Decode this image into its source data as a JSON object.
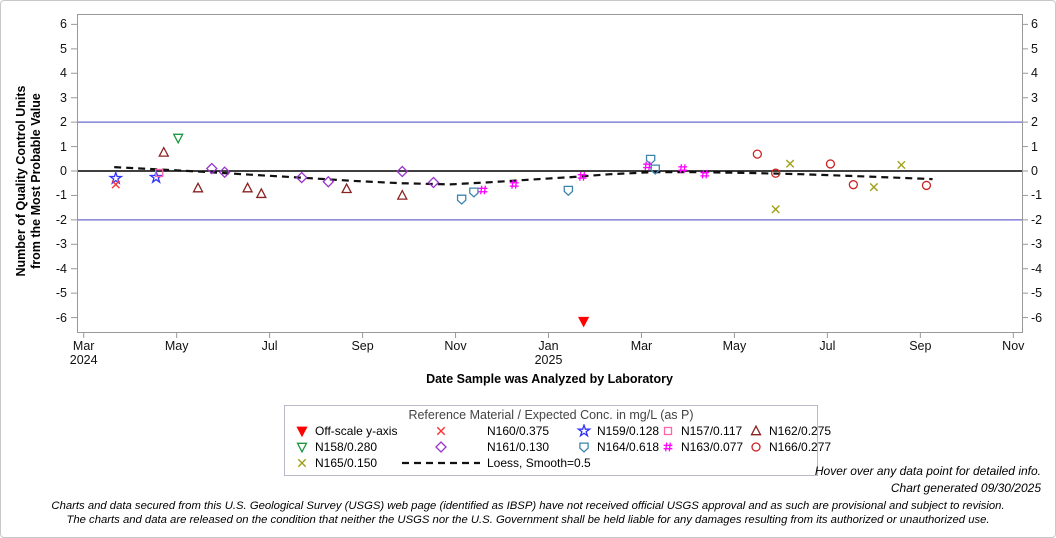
{
  "figure": {
    "y_axis_title_line1": "Number of Quality Control Units",
    "y_axis_title_line2": "from the Most Probable Value",
    "x_axis_title": "Date Sample was Analyzed by Laboratory"
  },
  "chart_data": {
    "type": "scatter",
    "title": "",
    "xlabel": "Date Sample was Analyzed by Laboratory",
    "ylabel": "Number of Quality Control Units from the Most Probable Value",
    "y_axis": {
      "min": -6,
      "max": 6,
      "tick_step": 1,
      "ticks": [
        6,
        5,
        4,
        3,
        2,
        1,
        0,
        -1,
        -2,
        -3,
        -4,
        -5,
        -6
      ]
    },
    "x_axis": {
      "ticks": [
        {
          "label": "Mar",
          "sublabel": "2024",
          "month_index": 0
        },
        {
          "label": "May",
          "sublabel": "",
          "month_index": 2
        },
        {
          "label": "Jul",
          "sublabel": "",
          "month_index": 4
        },
        {
          "label": "Sep",
          "sublabel": "",
          "month_index": 6
        },
        {
          "label": "Nov",
          "sublabel": "",
          "month_index": 8
        },
        {
          "label": "Jan",
          "sublabel": "2025",
          "month_index": 10
        },
        {
          "label": "Mar",
          "sublabel": "",
          "month_index": 12
        },
        {
          "label": "May",
          "sublabel": "",
          "month_index": 14
        },
        {
          "label": "Jul",
          "sublabel": "",
          "month_index": 16
        },
        {
          "label": "Sep",
          "sublabel": "",
          "month_index": 18
        },
        {
          "label": "Nov",
          "sublabel": "",
          "month_index": 20
        }
      ]
    },
    "reference_lines": [
      {
        "value": 2,
        "color": "#6a6ace"
      },
      {
        "value": 0,
        "color": "#000000"
      },
      {
        "value": -2,
        "color": "#6a6ace"
      }
    ],
    "series": [
      {
        "name": "N159",
        "label": "N159/0.128",
        "marker": "star",
        "color": "#3232ff",
        "points": [
          {
            "date": "2024-03-22",
            "value": -0.3
          },
          {
            "date": "2024-04-18",
            "value": -0.26
          }
        ]
      },
      {
        "name": "N160",
        "label": "N160/0.375",
        "marker": "x",
        "color": "#ff3333",
        "points": [
          {
            "date": "2024-03-22",
            "value": -0.55
          }
        ]
      },
      {
        "name": "N157",
        "label": "N157/0.117",
        "marker": "square",
        "color": "#ff66aa",
        "points": [
          {
            "date": "2024-04-20",
            "value": -0.08
          }
        ]
      },
      {
        "name": "N158",
        "label": "N158/0.280",
        "marker": "triangle-down",
        "color": "#1d9740",
        "points": [
          {
            "date": "2024-05-02",
            "value": 1.35
          }
        ]
      },
      {
        "name": "N162",
        "label": "N162/0.275",
        "marker": "triangle-up",
        "color": "#8b2222",
        "points": [
          {
            "date": "2024-04-23",
            "value": 0.76
          },
          {
            "date": "2024-05-15",
            "value": -0.7
          },
          {
            "date": "2024-06-17",
            "value": -0.7
          },
          {
            "date": "2024-06-26",
            "value": -0.93
          },
          {
            "date": "2024-08-21",
            "value": -0.73
          },
          {
            "date": "2024-09-27",
            "value": -1.0
          }
        ]
      },
      {
        "name": "N161",
        "label": "N161/0.130",
        "marker": "diamond",
        "color": "#9933cc",
        "points": [
          {
            "date": "2024-05-24",
            "value": 0.1
          },
          {
            "date": "2024-06-02",
            "value": -0.05
          },
          {
            "date": "2024-07-22",
            "value": -0.27
          },
          {
            "date": "2024-08-09",
            "value": -0.44
          },
          {
            "date": "2024-09-27",
            "value": -0.02
          },
          {
            "date": "2024-10-17",
            "value": -0.47
          }
        ]
      },
      {
        "name": "N164",
        "label": "N164/0.618",
        "marker": "shield",
        "color": "#3d85ad",
        "points": [
          {
            "date": "2024-11-05",
            "value": -1.15
          },
          {
            "date": "2024-11-13",
            "value": -0.86
          },
          {
            "date": "2025-01-14",
            "value": -0.79
          },
          {
            "date": "2025-03-07",
            "value": 0.48
          },
          {
            "date": "2025-03-10",
            "value": 0.08
          }
        ]
      },
      {
        "name": "N163",
        "label": "N163/0.077",
        "marker": "hash",
        "color": "#ff00ff",
        "points": [
          {
            "date": "2024-11-19",
            "value": -0.78
          },
          {
            "date": "2024-12-09",
            "value": -0.55
          },
          {
            "date": "2025-01-23",
            "value": -0.22
          },
          {
            "date": "2025-03-05",
            "value": 0.21
          },
          {
            "date": "2025-03-28",
            "value": 0.1
          },
          {
            "date": "2025-04-12",
            "value": -0.13
          }
        ]
      },
      {
        "name": "N166",
        "label": "N166/0.277",
        "marker": "circle",
        "color": "#cc2222",
        "points": [
          {
            "date": "2025-05-16",
            "value": 0.69
          },
          {
            "date": "2025-05-28",
            "value": -0.09
          },
          {
            "date": "2025-07-03",
            "value": 0.29
          },
          {
            "date": "2025-07-18",
            "value": -0.56
          },
          {
            "date": "2025-09-05",
            "value": -0.59
          }
        ]
      },
      {
        "name": "N165",
        "label": "N165/0.150",
        "marker": "x",
        "color": "#a0a018",
        "points": [
          {
            "date": "2025-05-28",
            "value": -1.57
          },
          {
            "date": "2025-06-07",
            "value": 0.3
          },
          {
            "date": "2025-08-01",
            "value": -0.66
          },
          {
            "date": "2025-08-19",
            "value": 0.25
          }
        ]
      }
    ],
    "off_scale_points": [
      {
        "date": "2025-01-24",
        "direction": "low",
        "plotted_value": -6.15,
        "marker": "triangle-down-filled",
        "color": "#ff0000"
      }
    ],
    "loess": {
      "label": "Loess, Smooth=0.5",
      "color": "#111111",
      "points": [
        {
          "date": "2024-03-21",
          "value": 0.16
        },
        {
          "date": "2024-04-14",
          "value": 0.08
        },
        {
          "date": "2024-05-17",
          "value": -0.03
        },
        {
          "date": "2024-06-19",
          "value": -0.15
        },
        {
          "date": "2024-07-21",
          "value": -0.27
        },
        {
          "date": "2024-08-24",
          "value": -0.4
        },
        {
          "date": "2024-09-26",
          "value": -0.5
        },
        {
          "date": "2024-10-28",
          "value": -0.55
        },
        {
          "date": "2024-11-24",
          "value": -0.46
        },
        {
          "date": "2024-12-20",
          "value": -0.35
        },
        {
          "date": "2025-01-16",
          "value": -0.25
        },
        {
          "date": "2025-02-11",
          "value": -0.13
        },
        {
          "date": "2025-03-08",
          "value": -0.05
        },
        {
          "date": "2025-04-09",
          "value": -0.05
        },
        {
          "date": "2025-05-12",
          "value": -0.08
        },
        {
          "date": "2025-06-14",
          "value": -0.13
        },
        {
          "date": "2025-07-16",
          "value": -0.2
        },
        {
          "date": "2025-08-18",
          "value": -0.28
        },
        {
          "date": "2025-09-09",
          "value": -0.33
        }
      ]
    }
  },
  "legend": {
    "title": "Reference Material / Expected Conc. in mg/L (as P)",
    "items": [
      {
        "label": "Off-scale y-axis",
        "marker": "triangle-down-filled",
        "color": "#ff0000",
        "cell": "narrow"
      },
      {
        "label": "N160/0.375",
        "marker": "x",
        "color": "#ff3333",
        "cell": "wide"
      },
      {
        "label": "N159/0.128",
        "marker": "star",
        "color": "#3232ff",
        "cell": "narrow"
      },
      {
        "label": "N157/0.117",
        "marker": "square",
        "color": "#ff66aa",
        "cell": "narrow"
      },
      {
        "label": "N162/0.275",
        "marker": "triangle-up",
        "color": "#8b2222",
        "cell": "narrow"
      },
      {
        "label": "N158/0.280",
        "marker": "triangle-down",
        "color": "#1d9740",
        "cell": "narrow"
      },
      {
        "label": "N161/0.130",
        "marker": "diamond",
        "color": "#9933cc",
        "cell": "wide"
      },
      {
        "label": "N164/0.618",
        "marker": "shield",
        "color": "#3d85ad",
        "cell": "narrow"
      },
      {
        "label": "N163/0.077",
        "marker": "hash",
        "color": "#ff00ff",
        "cell": "narrow"
      },
      {
        "label": "N166/0.277",
        "marker": "circle",
        "color": "#cc2222",
        "cell": "narrow"
      },
      {
        "label": "N165/0.150",
        "marker": "x",
        "color": "#a0a018",
        "cell": "narrow"
      },
      {
        "label": "Loess, Smooth=0.5",
        "marker": "dashed-line",
        "color": "#111111",
        "cell": "wide"
      }
    ]
  },
  "notes": {
    "hover": "Hover over any data point for detailed info.",
    "generated": "Chart generated 09/30/2025",
    "disclaimer_1": "Charts and data secured from this U.S. Geological Survey (USGS) web page (identified as IBSP) have not received official USGS approval and as such are provisional and subject to revision.",
    "disclaimer_2": "The charts and data are released on the condition that neither the USGS nor the U.S. Government shall be held liable for any damages resulting from its authorized or unauthorized use."
  }
}
